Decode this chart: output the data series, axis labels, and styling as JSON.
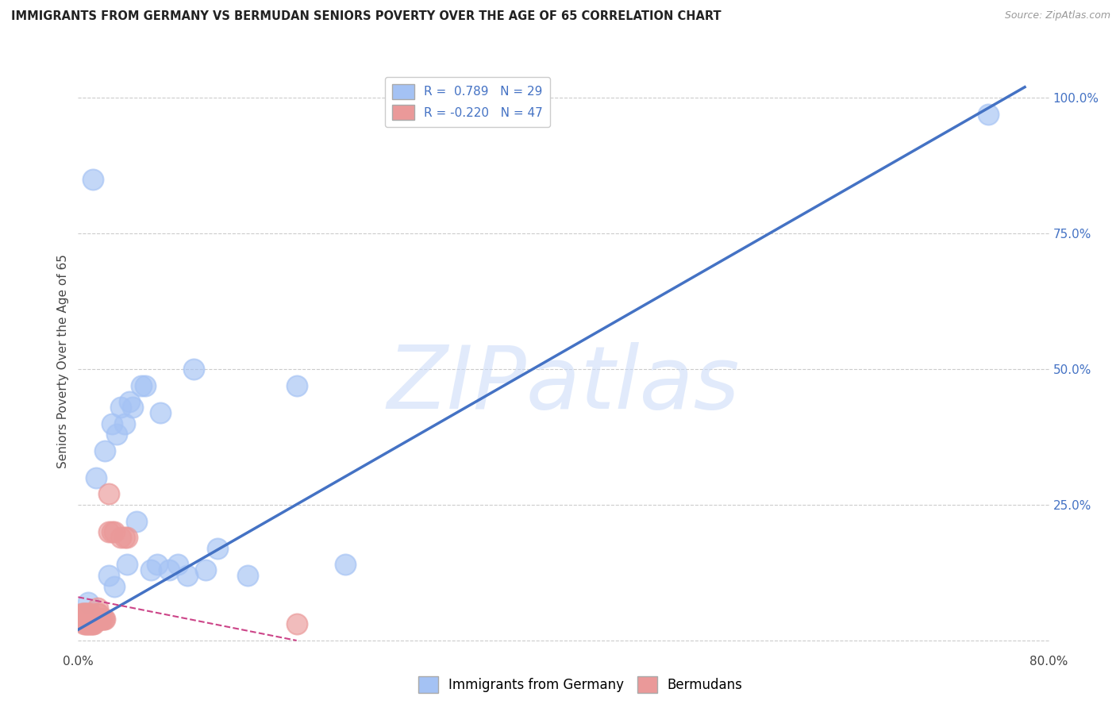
{
  "title": "IMMIGRANTS FROM GERMANY VS BERMUDAN SENIORS POVERTY OVER THE AGE OF 65 CORRELATION CHART",
  "source": "Source: ZipAtlas.com",
  "ylabel": "Seniors Poverty Over the Age of 65",
  "xlim": [
    0,
    0.8
  ],
  "ylim": [
    -0.02,
    1.05
  ],
  "xticks": [
    0.0,
    0.1,
    0.2,
    0.3,
    0.4,
    0.5,
    0.6,
    0.7,
    0.8
  ],
  "yticks_right": [
    0.0,
    0.25,
    0.5,
    0.75,
    1.0
  ],
  "legend_r1": "R =  0.789   N = 29",
  "legend_r2": "R = -0.220   N = 47",
  "blue_color": "#a4c2f4",
  "pink_color": "#ea9999",
  "line_blue": "#4472c4",
  "line_pink": "#cc4488",
  "watermark": "ZIPatlas",
  "blue_scatter_x": [
    0.015,
    0.022,
    0.028,
    0.032,
    0.035,
    0.038,
    0.04,
    0.042,
    0.045,
    0.048,
    0.008,
    0.025,
    0.03,
    0.06,
    0.065,
    0.052,
    0.068,
    0.082,
    0.09,
    0.095,
    0.105,
    0.115,
    0.18,
    0.22,
    0.75,
    0.012,
    0.075,
    0.055,
    0.14
  ],
  "blue_scatter_y": [
    0.3,
    0.35,
    0.4,
    0.38,
    0.43,
    0.4,
    0.14,
    0.44,
    0.43,
    0.22,
    0.07,
    0.12,
    0.1,
    0.13,
    0.14,
    0.47,
    0.42,
    0.14,
    0.12,
    0.5,
    0.13,
    0.17,
    0.47,
    0.14,
    0.97,
    0.85,
    0.13,
    0.47,
    0.12
  ],
  "pink_scatter_x": [
    0.002,
    0.003,
    0.003,
    0.004,
    0.004,
    0.005,
    0.005,
    0.005,
    0.006,
    0.006,
    0.006,
    0.007,
    0.007,
    0.007,
    0.008,
    0.008,
    0.008,
    0.009,
    0.009,
    0.01,
    0.01,
    0.01,
    0.011,
    0.011,
    0.012,
    0.012,
    0.013,
    0.013,
    0.014,
    0.015,
    0.016,
    0.016,
    0.017,
    0.017,
    0.018,
    0.019,
    0.02,
    0.021,
    0.022,
    0.025,
    0.028,
    0.03,
    0.035,
    0.038,
    0.04,
    0.025,
    0.18
  ],
  "pink_scatter_y": [
    0.04,
    0.05,
    0.04,
    0.04,
    0.05,
    0.03,
    0.04,
    0.05,
    0.03,
    0.04,
    0.05,
    0.03,
    0.04,
    0.05,
    0.03,
    0.04,
    0.05,
    0.03,
    0.04,
    0.03,
    0.04,
    0.05,
    0.03,
    0.04,
    0.03,
    0.04,
    0.03,
    0.04,
    0.04,
    0.04,
    0.05,
    0.06,
    0.04,
    0.05,
    0.04,
    0.04,
    0.04,
    0.04,
    0.04,
    0.2,
    0.2,
    0.2,
    0.19,
    0.19,
    0.19,
    0.27,
    0.03
  ],
  "blue_line_x": [
    0.0,
    0.78
  ],
  "blue_line_y": [
    0.02,
    1.02
  ],
  "pink_line_x": [
    0.0,
    0.18
  ],
  "pink_line_y": [
    0.08,
    0.0
  ]
}
